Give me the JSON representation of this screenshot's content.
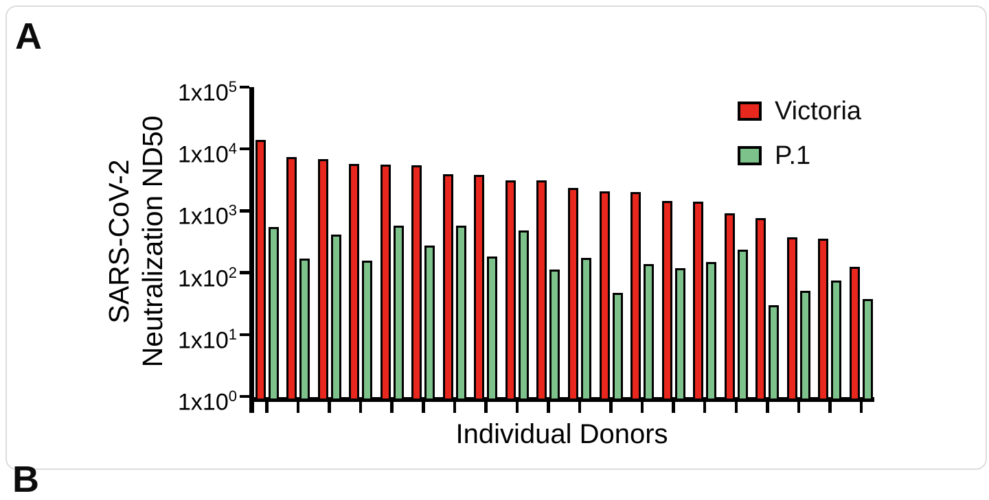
{
  "figure": {
    "panel_label": "A",
    "next_panel_label": "B"
  },
  "legend": [
    {
      "label": "Victoria",
      "color": "#e8281e"
    },
    {
      "label": "P.1",
      "color": "#7dc18b"
    }
  ],
  "chart_data": {
    "type": "bar",
    "title": "",
    "xlabel": "Individual Donors",
    "ylabel": "SARS-CoV-2 Neutralization ND50",
    "ylabel_line1": "SARS-CoV-2",
    "ylabel_line2": "Neutralization ND50",
    "y_scale": "log10",
    "ylim": [
      1,
      100000
    ],
    "y_tick_base": "1x10",
    "y_tick_exponents": [
      5,
      4,
      3,
      2,
      1,
      0
    ],
    "n_donors": 20,
    "x_ticks_unlabeled": true,
    "grid": false,
    "legend_position": "top-right",
    "series": [
      {
        "name": "Victoria",
        "color": "#e8281e",
        "values": [
          14000,
          7500,
          7000,
          5800,
          5700,
          5500,
          3900,
          3800,
          3100,
          3100,
          2400,
          2100,
          2050,
          1470,
          1440,
          930,
          780,
          380,
          355,
          127
        ]
      },
      {
        "name": "P.1",
        "color": "#7dc18b",
        "values": [
          560,
          170,
          420,
          160,
          575,
          280,
          580,
          185,
          490,
          115,
          175,
          48,
          140,
          120,
          150,
          240,
          30,
          52,
          76,
          38
        ]
      }
    ]
  }
}
